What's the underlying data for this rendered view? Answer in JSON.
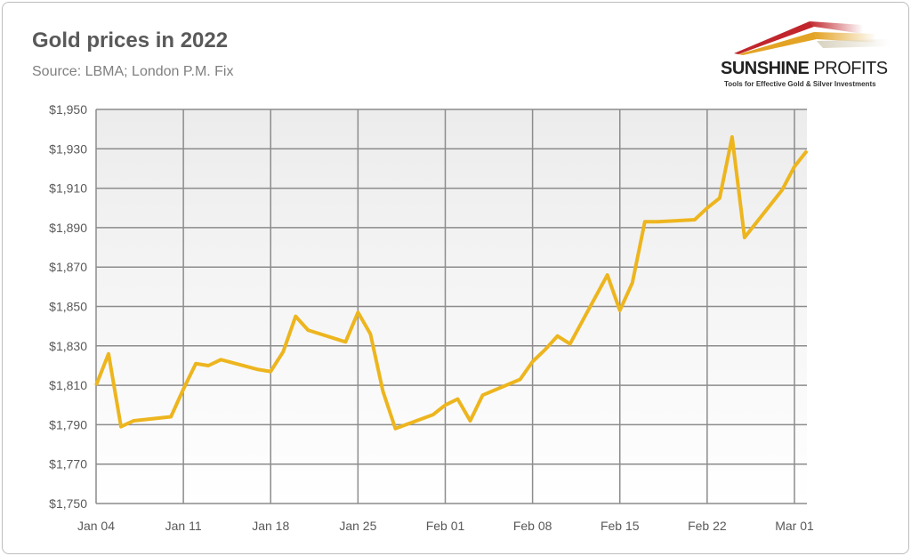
{
  "chart_data": {
    "type": "line",
    "title": "Gold prices in 2022",
    "subtitle": "Source: LBMA; London P.M. Fix",
    "xlabel": "",
    "ylabel": "",
    "ylim": [
      1750,
      1950
    ],
    "xlim": [
      "2022-01-04",
      "2022-03-02"
    ],
    "grid": true,
    "x_tick_labels": [
      "Jan 04",
      "Jan 11",
      "Jan 18",
      "Jan 25",
      "Feb 01",
      "Feb 08",
      "Feb 15",
      "Feb 22",
      "Mar 01"
    ],
    "x_tick_dates": [
      "2022-01-04",
      "2022-01-11",
      "2022-01-18",
      "2022-01-25",
      "2022-02-01",
      "2022-02-08",
      "2022-02-15",
      "2022-02-22",
      "2022-03-01"
    ],
    "y_tick_labels": [
      "$1,750",
      "$1,770",
      "$1,790",
      "$1,810",
      "$1,830",
      "$1,850",
      "$1,870",
      "$1,890",
      "$1,910",
      "$1,930",
      "$1,950"
    ],
    "y_ticks": [
      1750,
      1770,
      1790,
      1810,
      1830,
      1850,
      1870,
      1890,
      1910,
      1930,
      1950
    ],
    "line_color": "#EDB51E",
    "series": [
      {
        "x": [
          "2022-01-04",
          "2022-01-05",
          "2022-01-06",
          "2022-01-07",
          "2022-01-10",
          "2022-01-11",
          "2022-01-12",
          "2022-01-13",
          "2022-01-14",
          "2022-01-17",
          "2022-01-18",
          "2022-01-19",
          "2022-01-20",
          "2022-01-21",
          "2022-01-24",
          "2022-01-25",
          "2022-01-26",
          "2022-01-27",
          "2022-01-28",
          "2022-01-31",
          "2022-02-01",
          "2022-02-02",
          "2022-02-03",
          "2022-02-04",
          "2022-02-07",
          "2022-02-08",
          "2022-02-09",
          "2022-02-10",
          "2022-02-11",
          "2022-02-14",
          "2022-02-15",
          "2022-02-16",
          "2022-02-17",
          "2022-02-18",
          "2022-02-21",
          "2022-02-22",
          "2022-02-23",
          "2022-02-24",
          "2022-02-25",
          "2022-02-28",
          "2022-03-01",
          "2022-03-02"
        ],
        "values": [
          1810,
          1826,
          1789,
          1792,
          1794,
          1808,
          1821,
          1820,
          1823,
          1818,
          1817,
          1827,
          1845,
          1838,
          1832,
          1847,
          1836,
          1807,
          1788,
          1795,
          1800,
          1803,
          1792,
          1805,
          1813,
          1822,
          1828,
          1835,
          1831,
          1866,
          1848,
          1862,
          1893,
          1893,
          1894,
          1900,
          1905,
          1936,
          1885,
          1909,
          1921,
          1929
        ]
      }
    ]
  },
  "logo": {
    "name_bold": "SUNSHINE",
    "name_light": "PROFITS",
    "tagline": "Tools for Effective Gold & Silver Investments"
  }
}
